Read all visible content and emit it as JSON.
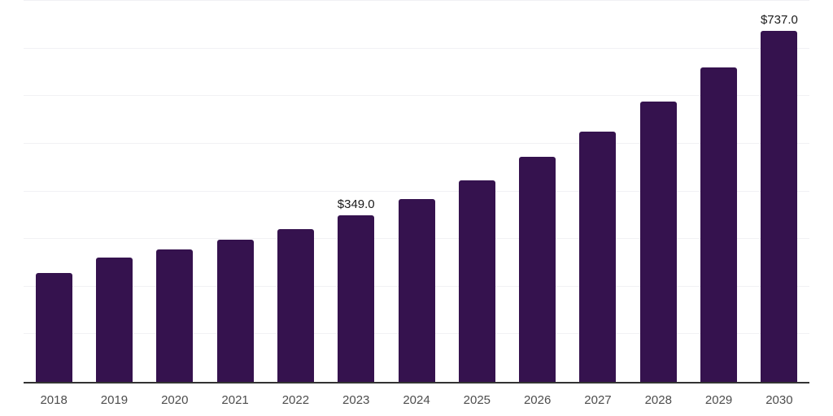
{
  "chart_data": {
    "type": "bar",
    "title": "",
    "xlabel": "",
    "ylabel": "",
    "categories": [
      "2018",
      "2019",
      "2020",
      "2021",
      "2022",
      "2023",
      "2024",
      "2025",
      "2026",
      "2027",
      "2028",
      "2029",
      "2030"
    ],
    "values": [
      228,
      261,
      278,
      298,
      321,
      349,
      384,
      423,
      472,
      526,
      589,
      660,
      737
    ],
    "data_labels": {
      "2023": "$349.0",
      "2030": "$737.0"
    },
    "ylim": [
      0,
      800
    ],
    "gridline_step": 100,
    "grid": true,
    "legend": false,
    "y_axis_labels_visible": false,
    "colors": {
      "bar": "#35124e",
      "axis_line": "#333333",
      "gridline": "#f1f1f4",
      "tick_label": "#4d4d4d",
      "data_label": "#1a1a1a",
      "background": "#ffffff"
    }
  }
}
